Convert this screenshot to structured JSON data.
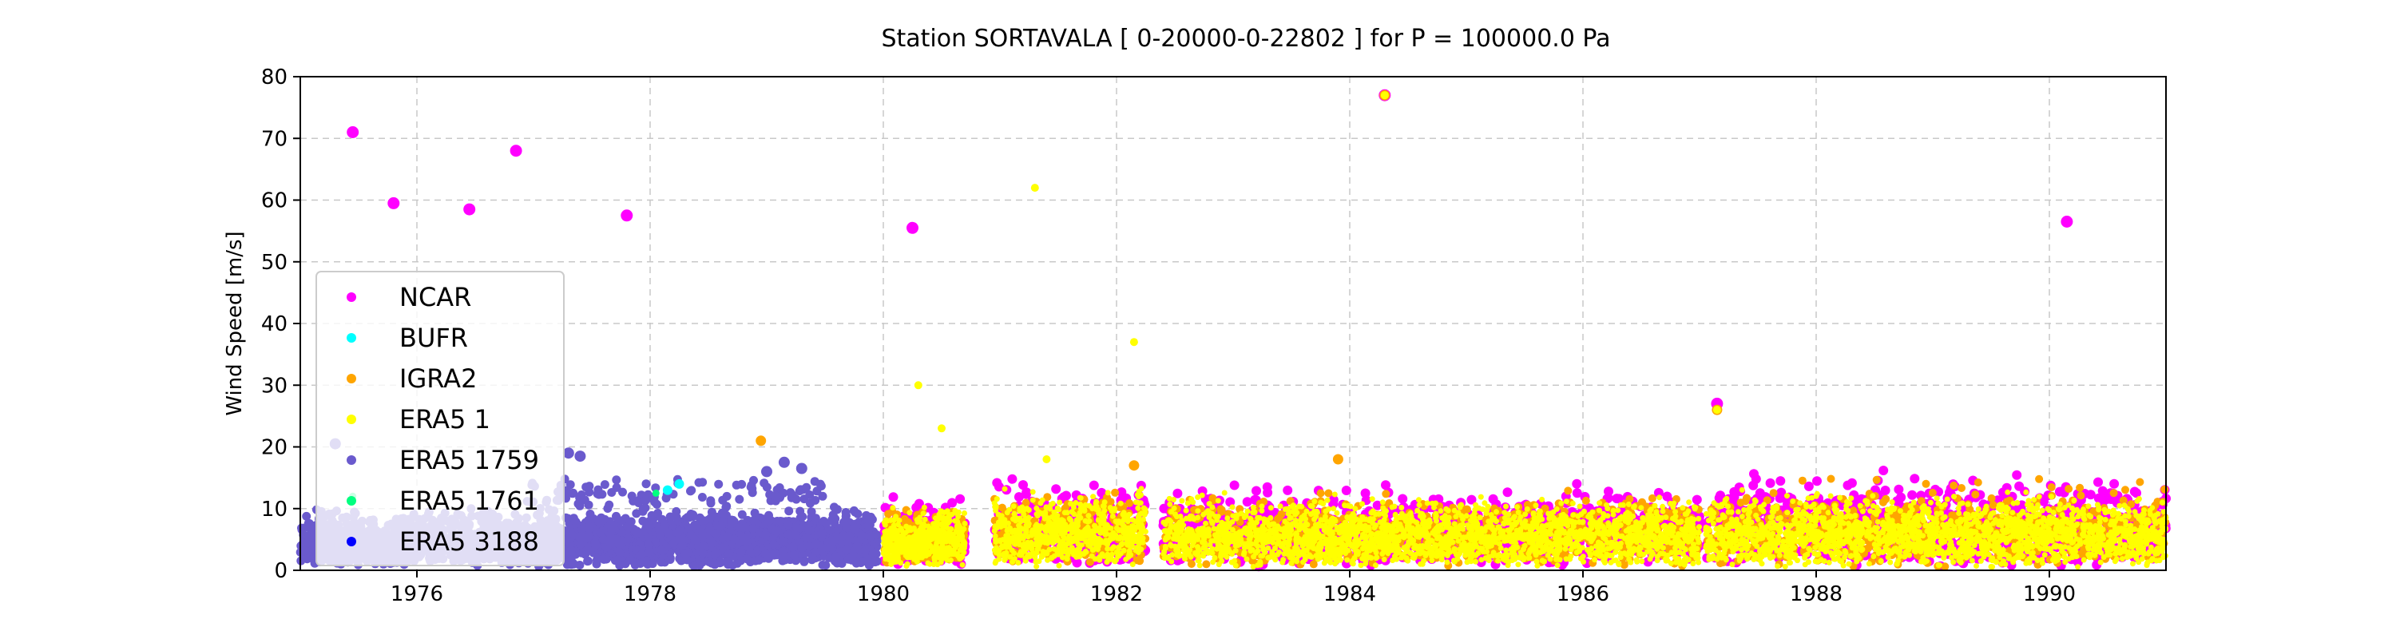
{
  "chart_data": {
    "type": "scatter",
    "title": "Station  SORTAVALA [ 0-20000-0-22802 ]  for P = 100000.0 Pa",
    "xlabel": "",
    "ylabel": "Wind Speed [m/s]",
    "xlim": [
      1975.0,
      1991.0
    ],
    "ylim": [
      0,
      80
    ],
    "xticks": [
      1976,
      1978,
      1980,
      1982,
      1984,
      1986,
      1988,
      1990
    ],
    "yticks": [
      0,
      10,
      20,
      30,
      40,
      50,
      60,
      70,
      80
    ],
    "grid": true,
    "legend_position": "left",
    "series": [
      {
        "name": "NCAR",
        "color": "#ff00ff",
        "bands": [
          {
            "x": [
              1980.0,
              1980.7
            ],
            "y": [
              0.5,
              13
            ],
            "n": 220
          },
          {
            "x": [
              1980.95,
              1982.25
            ],
            "y": [
              0.5,
              16
            ],
            "n": 300
          },
          {
            "x": [
              1982.4,
              1987.0
            ],
            "y": [
              0.5,
              15
            ],
            "n": 1000
          },
          {
            "x": [
              1987.05,
              1991.0
            ],
            "y": [
              0.5,
              17
            ],
            "n": 850
          }
        ],
        "outliers": [
          [
            1975.45,
            71
          ],
          [
            1975.8,
            59.5
          ],
          [
            1976.45,
            58.5
          ],
          [
            1976.85,
            68
          ],
          [
            1977.8,
            57.5
          ],
          [
            1980.25,
            55.5
          ],
          [
            1984.3,
            77
          ],
          [
            1987.15,
            27
          ],
          [
            1990.15,
            56.5
          ]
        ]
      },
      {
        "name": "BUFR",
        "color": "#00ffff",
        "bands": [],
        "outliers": [
          [
            1978.15,
            13
          ],
          [
            1978.25,
            14
          ]
        ]
      },
      {
        "name": "IGRA2",
        "color": "#ffa500",
        "bands": [
          {
            "x": [
              1980.0,
              1980.7
            ],
            "y": [
              0.5,
              12
            ],
            "n": 150
          },
          {
            "x": [
              1980.95,
              1982.25
            ],
            "y": [
              0.5,
              15
            ],
            "n": 220
          },
          {
            "x": [
              1982.4,
              1987.0
            ],
            "y": [
              0.5,
              14
            ],
            "n": 700
          },
          {
            "x": [
              1987.05,
              1991.0
            ],
            "y": [
              0.5,
              16
            ],
            "n": 600
          }
        ],
        "outliers": [
          [
            1978.95,
            21
          ],
          [
            1983.9,
            18
          ],
          [
            1984.3,
            77
          ],
          [
            1987.15,
            26
          ],
          [
            1982.15,
            17
          ]
        ]
      },
      {
        "name": "ERA5 1",
        "color": "#ffff00",
        "bands": [
          {
            "x": [
              1980.0,
              1980.7
            ],
            "y": [
              0.5,
              11
            ],
            "n": 450
          },
          {
            "x": [
              1980.95,
              1982.25
            ],
            "y": [
              0.5,
              14
            ],
            "n": 650
          },
          {
            "x": [
              1982.4,
              1987.0
            ],
            "y": [
              0.5,
              13
            ],
            "n": 2200
          },
          {
            "x": [
              1987.05,
              1991.0
            ],
            "y": [
              0.5,
              14
            ],
            "n": 1900
          }
        ],
        "outliers": [
          [
            1980.3,
            30
          ],
          [
            1980.5,
            23
          ],
          [
            1981.3,
            62
          ],
          [
            1981.4,
            18
          ],
          [
            1982.15,
            37
          ],
          [
            1984.3,
            77
          ],
          [
            1987.15,
            26
          ]
        ]
      },
      {
        "name": "ERA5 1759",
        "color": "#6a5acd",
        "bands": [
          {
            "x": [
              1975.0,
              1977.85
            ],
            "y": [
              0.5,
              11
            ],
            "n": 1600
          },
          {
            "x": [
              1977.85,
              1979.95
            ],
            "y": [
              0.5,
              11
            ],
            "n": 1300
          },
          {
            "x": [
              1976.9,
              1979.5
            ],
            "y": [
              10,
              16
            ],
            "n": 110
          }
        ],
        "outliers": [
          [
            1975.3,
            20.5
          ],
          [
            1977.3,
            19
          ],
          [
            1977.4,
            18.5
          ],
          [
            1979.15,
            17.5
          ],
          [
            1979.3,
            16.5
          ],
          [
            1979.0,
            16
          ]
        ]
      },
      {
        "name": "ERA5 1761",
        "color": "#00ff7f",
        "bands": [],
        "outliers": [
          [
            1978.05,
            12.5
          ],
          [
            1975.45,
            12
          ]
        ]
      },
      {
        "name": "ERA5 3188",
        "color": "#0000ff",
        "bands": [],
        "outliers": []
      }
    ]
  }
}
